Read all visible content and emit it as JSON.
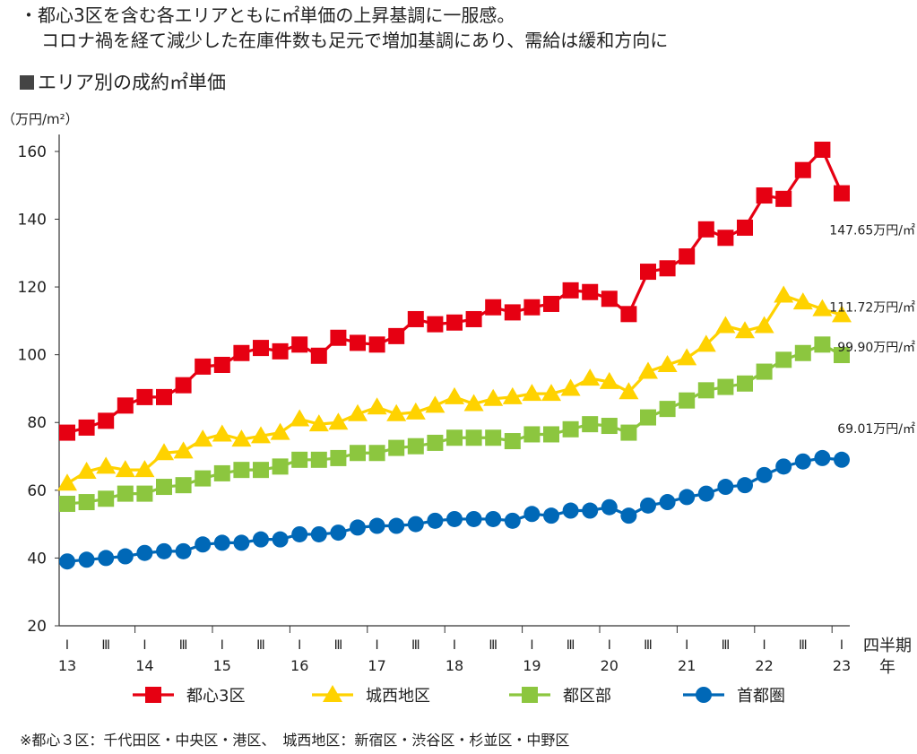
{
  "notes": [
    "・都心3区を含む各エリアともに㎡単価の上昇基調に一服感。",
    "コロナ禍を経て減少した在庫件数も足元で増加基調にあり、需給は緩和方向に"
  ],
  "subtitle": "エリア別の成約㎡単価",
  "footnote": "※都心３区：千代田区・中央区・港区、　城西地区：新宿区・渋谷区・杉並区・中野区",
  "chart_data": {
    "type": "line",
    "yunit": "（万円/m²）",
    "ylim": [
      20,
      165
    ],
    "yticks": [
      20,
      40,
      60,
      80,
      100,
      120,
      140,
      160
    ],
    "xaxis_label": [
      "四半期",
      "年"
    ],
    "quarter_marks": [
      "Ⅰ",
      "Ⅲ"
    ],
    "years": [
      "13",
      "14",
      "15",
      "16",
      "17",
      "18",
      "19",
      "20",
      "21",
      "22",
      "23"
    ],
    "x": [
      "13Q1",
      "13Q2",
      "13Q3",
      "13Q4",
      "14Q1",
      "14Q2",
      "14Q3",
      "14Q4",
      "15Q1",
      "15Q2",
      "15Q3",
      "15Q4",
      "16Q1",
      "16Q2",
      "16Q3",
      "16Q4",
      "17Q1",
      "17Q2",
      "17Q3",
      "17Q4",
      "18Q1",
      "18Q2",
      "18Q3",
      "18Q4",
      "19Q1",
      "19Q2",
      "19Q3",
      "19Q4",
      "20Q1",
      "20Q2",
      "20Q3",
      "20Q4",
      "21Q1",
      "21Q2",
      "21Q3",
      "21Q4",
      "22Q1",
      "22Q2",
      "22Q3",
      "22Q4",
      "23Q1"
    ],
    "series": [
      {
        "name": "都心3区",
        "color": "#e60012",
        "marker": "square",
        "values": [
          77,
          78.5,
          80.5,
          85,
          87.5,
          87.5,
          91,
          96.5,
          97,
          100.5,
          102,
          101,
          103,
          99.7,
          105,
          103.5,
          103,
          105.5,
          110.5,
          109,
          109.5,
          110.5,
          114,
          112.5,
          114,
          115,
          119,
          118.5,
          116.5,
          112,
          124.5,
          125.5,
          129,
          137,
          134.5,
          137.5,
          147,
          146,
          154.5,
          160.5,
          147.65
        ],
        "end_label": "147.65万円/㎡"
      },
      {
        "name": "城西地区",
        "color": "#ffd200",
        "marker": "triangle",
        "values": [
          62,
          65.5,
          67,
          66,
          66,
          71,
          71.5,
          75,
          76.5,
          75,
          76,
          77,
          81,
          79.5,
          80,
          82.5,
          84.5,
          82.5,
          83,
          85,
          87.5,
          85.5,
          87,
          87.5,
          88.5,
          88.5,
          90,
          93,
          92,
          89,
          95,
          97,
          99,
          103,
          108.5,
          107,
          108.5,
          117.5,
          115.5,
          113.5,
          111.72
        ],
        "end_label": "111.72万円/㎡"
      },
      {
        "name": "都区部",
        "color": "#8cc63f",
        "marker": "square",
        "values": [
          56,
          56.5,
          57.5,
          59,
          59,
          61,
          61.5,
          63.5,
          65,
          66,
          66,
          67,
          69,
          69,
          69.5,
          71,
          71,
          72.5,
          73,
          74,
          75.5,
          75.5,
          75.5,
          74.5,
          76.5,
          76.5,
          78,
          79.5,
          79,
          77,
          81.5,
          84,
          86.5,
          89.5,
          90.5,
          91.5,
          95,
          98.5,
          100.5,
          103,
          99.9
        ],
        "end_label": "99.90万円/㎡"
      },
      {
        "name": "首都圏",
        "color": "#0068b7",
        "marker": "circle",
        "values": [
          39,
          39.5,
          40,
          40.5,
          41.5,
          42,
          42,
          44,
          44.5,
          44.5,
          45.5,
          45.5,
          47,
          47,
          47.5,
          49,
          49.5,
          49.5,
          50,
          51,
          51.5,
          51.5,
          51.5,
          51,
          53,
          52.5,
          54,
          54,
          55,
          52.5,
          55.5,
          56.5,
          58,
          59,
          61,
          61.5,
          64.5,
          67,
          68.5,
          69.5,
          69.01
        ],
        "end_label": "69.01万円/㎡"
      }
    ],
    "legend_position": "bottom"
  }
}
